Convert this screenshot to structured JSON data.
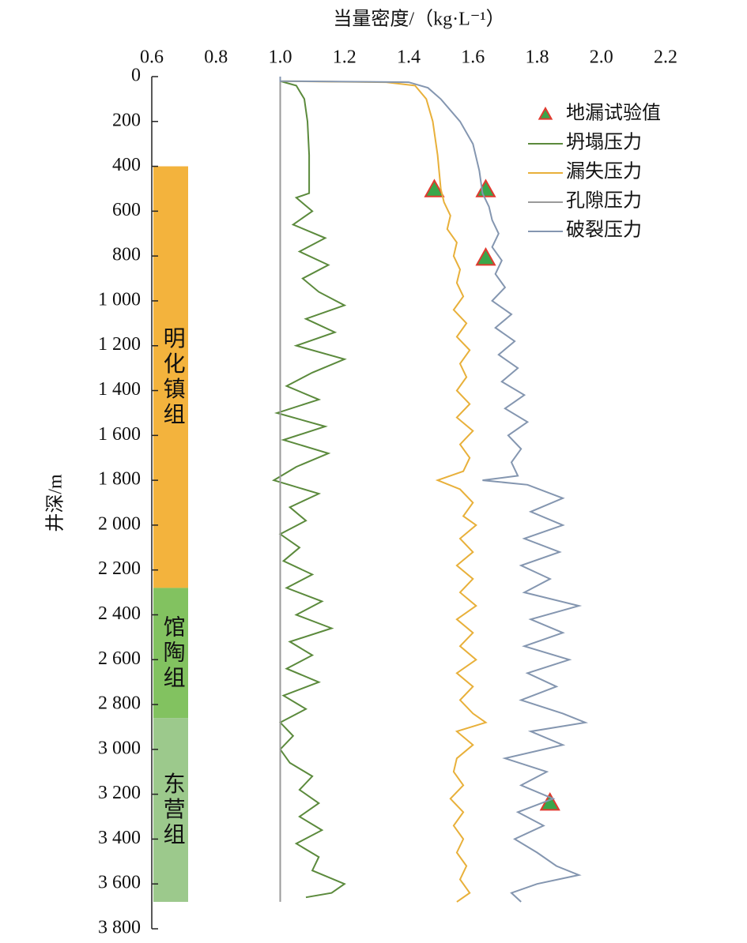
{
  "chart_data": {
    "type": "depth-log",
    "x_label": "当量密度/（kg·L⁻¹）",
    "y_label": "井深/m",
    "xlim": [
      0.6,
      2.2
    ],
    "xticks": [
      0.6,
      0.8,
      {
        "value": 1,
        "label": "1.0"
      },
      1.2,
      1.4,
      1.6,
      1.8,
      {
        "value": 2,
        "label": "2.0"
      },
      2.2
    ],
    "ylim": [
      0,
      3800
    ],
    "yticks": [
      0,
      200,
      400,
      600,
      800,
      {
        "value": 1000,
        "label": "1 000"
      },
      {
        "value": 1200,
        "label": "1 200"
      },
      {
        "value": 1400,
        "label": "1 400"
      },
      {
        "value": 1600,
        "label": "1 600"
      },
      {
        "value": 1800,
        "label": "1 800"
      },
      {
        "value": 2000,
        "label": "2 000"
      },
      {
        "value": 2200,
        "label": "2 200"
      },
      {
        "value": 2400,
        "label": "2 400"
      },
      {
        "value": 2600,
        "label": "2 600"
      },
      {
        "value": 2800,
        "label": "2 800"
      },
      {
        "value": 3000,
        "label": "3 000"
      },
      {
        "value": 3200,
        "label": "3 200"
      },
      {
        "value": 3400,
        "label": "3 400"
      },
      {
        "value": 3600,
        "label": "3 600"
      },
      {
        "value": 3800,
        "label": "3 800"
      }
    ],
    "legend": "top-right",
    "formations": [
      {
        "label": "明化镇组",
        "top": 400,
        "bottom": 2280,
        "color": "#f3b33d"
      },
      {
        "label": "馆陶组",
        "top": 2280,
        "bottom": 2860,
        "color": "#82c260"
      },
      {
        "label": "东营组",
        "top": 2860,
        "bottom": 3680,
        "color": "#9cc98c"
      }
    ],
    "series": [
      {
        "name": "地漏试验值",
        "kind": "scatter",
        "color": "#3aa64a",
        "edge": "#e03a2f",
        "x": [
          1.48,
          1.64,
          1.64,
          1.84
        ],
        "y": [
          505,
          505,
          810,
          3240
        ]
      },
      {
        "name": "坍塌压力",
        "kind": "line",
        "color": "#5b8a3c",
        "x": [
          1.0,
          1.0,
          1.05,
          1.075,
          1.085,
          1.09,
          1.09,
          1.05,
          1.1,
          1.04,
          1.14,
          1.06,
          1.15,
          1.07,
          1.12,
          1.2,
          1.08,
          1.17,
          1.05,
          1.2,
          1.1,
          1.02,
          1.12,
          0.99,
          1.14,
          1.01,
          1.15,
          1.05,
          0.98,
          1.12,
          1.03,
          1.08,
          1.0,
          1.06,
          1.01,
          1.1,
          1.02,
          1.13,
          1.05,
          1.16,
          1.03,
          1.1,
          1.02,
          1.12,
          1.01,
          1.08,
          1.0,
          1.04,
          1.0,
          1.03,
          1.1,
          1.06,
          1.12,
          1.06,
          1.13,
          1.05,
          1.12,
          1.1,
          1.2,
          1.16,
          1.08
        ],
        "y": [
          0,
          20,
          40,
          100,
          200,
          350,
          520,
          540,
          600,
          660,
          720,
          780,
          840,
          900,
          960,
          1020,
          1080,
          1140,
          1200,
          1260,
          1320,
          1380,
          1440,
          1500,
          1560,
          1620,
          1680,
          1740,
          1800,
          1860,
          1920,
          1980,
          2040,
          2100,
          2160,
          2220,
          2280,
          2340,
          2400,
          2460,
          2520,
          2580,
          2640,
          2700,
          2760,
          2820,
          2880,
          2940,
          3000,
          3060,
          3120,
          3180,
          3240,
          3300,
          3360,
          3420,
          3480,
          3540,
          3600,
          3640,
          3660
        ]
      },
      {
        "name": "漏失压力",
        "kind": "line",
        "color": "#e8b03a",
        "x": [
          1.0,
          1.0,
          1.33,
          1.42,
          1.455,
          1.475,
          1.49,
          1.5,
          1.51,
          1.53,
          1.52,
          1.55,
          1.54,
          1.56,
          1.55,
          1.57,
          1.54,
          1.58,
          1.55,
          1.59,
          1.56,
          1.58,
          1.55,
          1.59,
          1.55,
          1.6,
          1.56,
          1.59,
          1.57,
          1.49,
          1.56,
          1.6,
          1.57,
          1.61,
          1.56,
          1.6,
          1.55,
          1.6,
          1.56,
          1.61,
          1.55,
          1.6,
          1.56,
          1.61,
          1.55,
          1.6,
          1.56,
          1.6,
          1.64,
          1.55,
          1.6,
          1.55,
          1.54,
          1.57,
          1.53,
          1.57,
          1.54,
          1.57,
          1.55,
          1.58,
          1.56,
          1.59,
          1.55
        ],
        "y": [
          0,
          20,
          25,
          40,
          100,
          200,
          350,
          500,
          560,
          620,
          680,
          740,
          800,
          860,
          920,
          980,
          1040,
          1100,
          1160,
          1220,
          1280,
          1340,
          1400,
          1460,
          1520,
          1580,
          1640,
          1700,
          1760,
          1800,
          1840,
          1900,
          1960,
          2000,
          2060,
          2120,
          2180,
          2240,
          2300,
          2360,
          2420,
          2480,
          2540,
          2600,
          2660,
          2720,
          2780,
          2840,
          2880,
          2920,
          2980,
          3040,
          3100,
          3160,
          3220,
          3280,
          3340,
          3400,
          3460,
          3520,
          3580,
          3640,
          3680
        ]
      },
      {
        "name": "孔隙压力",
        "kind": "line",
        "color": "#9a9a9a",
        "x": [
          1.0,
          1.0
        ],
        "y": [
          0,
          3680
        ]
      },
      {
        "name": "破裂压力",
        "kind": "line",
        "color": "#8496b0",
        "x": [
          1.0,
          1.0,
          1.4,
          1.46,
          1.5,
          1.56,
          1.6,
          1.62,
          1.63,
          1.65,
          1.66,
          1.68,
          1.66,
          1.69,
          1.67,
          1.7,
          1.66,
          1.72,
          1.67,
          1.73,
          1.68,
          1.74,
          1.69,
          1.76,
          1.7,
          1.77,
          1.71,
          1.75,
          1.72,
          1.74,
          1.63,
          1.77,
          1.88,
          1.78,
          1.88,
          1.76,
          1.87,
          1.75,
          1.84,
          1.76,
          1.93,
          1.78,
          1.88,
          1.76,
          1.9,
          1.77,
          1.86,
          1.75,
          1.88,
          1.95,
          1.78,
          1.88,
          1.7,
          1.83,
          1.75,
          1.85,
          1.74,
          1.82,
          1.73,
          1.8,
          1.86,
          1.93,
          1.8,
          1.72,
          1.75
        ],
        "y": [
          0,
          20,
          25,
          50,
          100,
          200,
          300,
          420,
          520,
          580,
          640,
          700,
          760,
          820,
          880,
          940,
          1000,
          1060,
          1120,
          1180,
          1240,
          1300,
          1360,
          1420,
          1480,
          1540,
          1600,
          1660,
          1720,
          1780,
          1800,
          1820,
          1880,
          1940,
          2000,
          2060,
          2120,
          2180,
          2240,
          2300,
          2360,
          2420,
          2480,
          2540,
          2600,
          2660,
          2720,
          2780,
          2840,
          2880,
          2920,
          2980,
          3040,
          3100,
          3160,
          3220,
          3280,
          3340,
          3400,
          3460,
          3520,
          3560,
          3600,
          3640,
          3680
        ]
      }
    ]
  }
}
